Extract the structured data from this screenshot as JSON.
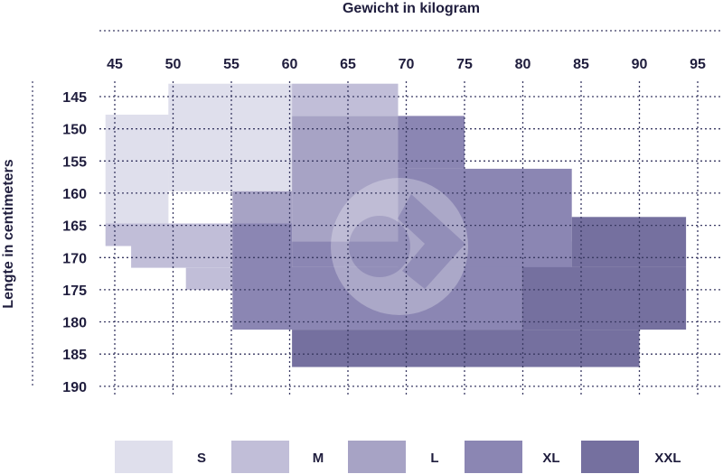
{
  "chart_data": {
    "type": "heatmap",
    "title": "Gewicht in kilogram",
    "xlabel": "Gewicht in kilogram",
    "ylabel": "Lengte in centimeters",
    "x_ticks": [
      45,
      50,
      55,
      60,
      65,
      70,
      75,
      80,
      85,
      90,
      95
    ],
    "y_ticks": [
      145,
      150,
      155,
      160,
      165,
      170,
      175,
      180,
      185,
      190
    ],
    "xlim": [
      45,
      95
    ],
    "ylim": [
      145,
      190
    ],
    "sizes": [
      {
        "name": "S",
        "color": "#dfdfec"
      },
      {
        "name": "M",
        "color": "#c1bed8"
      },
      {
        "name": "L",
        "color": "#a7a3c5"
      },
      {
        "name": "XL",
        "color": "#8b86b3"
      },
      {
        "name": "XXL",
        "color": "#75709f"
      }
    ],
    "regions": [
      {
        "size": "S",
        "x": [
          44.2,
          49.6
        ],
        "y": [
          147.8,
          164.7
        ]
      },
      {
        "size": "S",
        "x": [
          49.6,
          60.2
        ],
        "y": [
          143.0,
          159.7
        ]
      },
      {
        "size": "M",
        "x": [
          44.2,
          60.2
        ],
        "y": [
          164.7,
          168.2
        ]
      },
      {
        "size": "M",
        "x": [
          46.4,
          60.2
        ],
        "y": [
          168.2,
          171.6
        ]
      },
      {
        "size": "M",
        "x": [
          51.1,
          60.2
        ],
        "y": [
          171.6,
          175.0
        ]
      },
      {
        "size": "M",
        "x": [
          60.2,
          69.3
        ],
        "y": [
          143.0,
          148.0
        ]
      },
      {
        "size": "L",
        "x": [
          60.2,
          69.3
        ],
        "y": [
          148.0,
          167.5
        ]
      },
      {
        "size": "L",
        "x": [
          55.1,
          60.2
        ],
        "y": [
          159.7,
          164.7
        ]
      },
      {
        "size": "XL",
        "x": [
          69.3,
          75.0
        ],
        "y": [
          148.0,
          156.2
        ]
      },
      {
        "size": "XL",
        "x": [
          69.3,
          84.2
        ],
        "y": [
          156.2,
          171.5
        ]
      },
      {
        "size": "XL",
        "x": [
          60.2,
          84.2
        ],
        "y": [
          167.5,
          171.5
        ]
      },
      {
        "size": "XL",
        "x": [
          55.1,
          60.2
        ],
        "y": [
          164.7,
          175.0
        ]
      },
      {
        "size": "XL",
        "x": [
          55.1,
          79.9
        ],
        "y": [
          171.5,
          181.2
        ]
      },
      {
        "size": "XXL",
        "x": [
          84.2,
          94.0
        ],
        "y": [
          163.7,
          171.5
        ]
      },
      {
        "size": "XXL",
        "x": [
          79.9,
          94.0
        ],
        "y": [
          171.5,
          181.2
        ]
      },
      {
        "size": "XXL",
        "x": [
          60.2,
          90.0
        ],
        "y": [
          181.2,
          187.0
        ]
      }
    ],
    "legend_position": "bottom",
    "grid": true
  }
}
